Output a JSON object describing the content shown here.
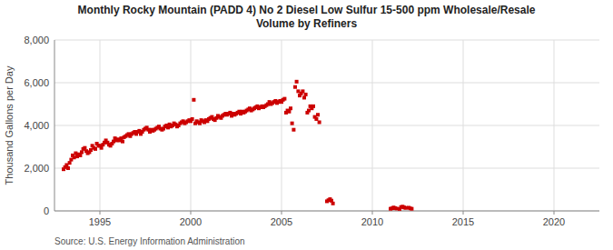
{
  "chart_data": {
    "type": "scatter",
    "title": "Monthly Rocky Mountain (PADD 4) No 2 Diesel Low Sulfur 15-500 ppm Wholesale/Resale\nVolume by Refiners",
    "ylabel": "Thousand Gallons per Day",
    "annotations": [
      "Source: U.S. Energy Information Administration"
    ],
    "color": "#cc0000",
    "marker": "square",
    "grid": true,
    "xlim": [
      1992.5,
      2022.5
    ],
    "xticks": [
      1995,
      2000,
      2005,
      2010,
      2015,
      2020
    ],
    "ylim": [
      0,
      8000
    ],
    "yticks": [
      0,
      {
        "value": 2000,
        "label": "2,000"
      },
      {
        "value": 4000,
        "label": "4,000"
      },
      {
        "value": 6000,
        "label": "6,000"
      },
      {
        "value": 8000,
        "label": "8,000"
      }
    ],
    "x": [
      1993.0,
      1993.08,
      1993.17,
      1993.25,
      1993.33,
      1993.42,
      1993.5,
      1993.58,
      1993.67,
      1993.75,
      1993.83,
      1993.92,
      1994.0,
      1994.08,
      1994.17,
      1994.25,
      1994.33,
      1994.42,
      1994.5,
      1994.58,
      1994.67,
      1994.75,
      1994.83,
      1994.92,
      1995.0,
      1995.08,
      1995.17,
      1995.25,
      1995.33,
      1995.42,
      1995.5,
      1995.58,
      1995.67,
      1995.75,
      1995.83,
      1995.92,
      1996.0,
      1996.08,
      1996.17,
      1996.25,
      1996.33,
      1996.42,
      1996.5,
      1996.58,
      1996.67,
      1996.75,
      1996.83,
      1996.92,
      1997.0,
      1997.08,
      1997.17,
      1997.25,
      1997.33,
      1997.42,
      1997.5,
      1997.58,
      1997.67,
      1997.75,
      1997.83,
      1997.92,
      1998.0,
      1998.08,
      1998.17,
      1998.25,
      1998.33,
      1998.42,
      1998.5,
      1998.58,
      1998.67,
      1998.75,
      1998.83,
      1998.92,
      1999.0,
      1999.08,
      1999.17,
      1999.25,
      1999.33,
      1999.42,
      1999.5,
      1999.58,
      1999.67,
      1999.75,
      1999.83,
      1999.92,
      2000.0,
      2000.08,
      2000.17,
      2000.25,
      2000.33,
      2000.42,
      2000.5,
      2000.58,
      2000.67,
      2000.75,
      2000.83,
      2000.92,
      2001.0,
      2001.08,
      2001.17,
      2001.25,
      2001.33,
      2001.42,
      2001.5,
      2001.58,
      2001.67,
      2001.75,
      2001.83,
      2001.92,
      2002.0,
      2002.08,
      2002.17,
      2002.25,
      2002.33,
      2002.42,
      2002.5,
      2002.58,
      2002.67,
      2002.75,
      2002.83,
      2002.92,
      2003.0,
      2003.08,
      2003.17,
      2003.25,
      2003.33,
      2003.42,
      2003.5,
      2003.58,
      2003.67,
      2003.75,
      2003.83,
      2003.92,
      2004.0,
      2004.08,
      2004.17,
      2004.25,
      2004.33,
      2004.42,
      2004.5,
      2004.58,
      2004.67,
      2004.75,
      2004.83,
      2004.92,
      2005.0,
      2005.08,
      2005.17,
      2005.25,
      2005.33,
      2005.42,
      2005.5,
      2005.58,
      2005.67,
      2005.75,
      2005.83,
      2005.92,
      2006.0,
      2006.08,
      2006.17,
      2006.25,
      2006.33,
      2006.42,
      2006.5,
      2006.58,
      2006.67,
      2006.75,
      2006.83,
      2006.92,
      2007.0,
      2007.08,
      2007.5,
      2007.58,
      2007.67,
      2007.75,
      2007.83,
      2011.0,
      2011.08,
      2011.17,
      2011.25,
      2011.33,
      2011.5,
      2011.58,
      2011.67,
      2011.75,
      2011.83,
      2012.0,
      2012.08,
      2012.17
    ],
    "values": [
      1950,
      2050,
      2150,
      2000,
      2250,
      2400,
      2600,
      2500,
      2700,
      2550,
      2650,
      2600,
      2750,
      2900,
      2950,
      2800,
      2700,
      2750,
      2850,
      3050,
      2950,
      2900,
      3150,
      3050,
      3050,
      2950,
      3100,
      3200,
      3300,
      3200,
      3100,
      3050,
      3150,
      3250,
      3400,
      3300,
      3350,
      3300,
      3400,
      3250,
      3450,
      3500,
      3550,
      3600,
      3500,
      3600,
      3650,
      3700,
      3600,
      3700,
      3750,
      3600,
      3700,
      3800,
      3850,
      3900,
      3800,
      3700,
      3800,
      3750,
      3800,
      3850,
      3900,
      3950,
      3850,
      3800,
      3850,
      3950,
      4000,
      3900,
      4050,
      3950,
      4000,
      4100,
      4050,
      3950,
      4000,
      4100,
      4150,
      4200,
      4100,
      4150,
      4200,
      4250,
      4200,
      4300,
      5200,
      4100,
      4200,
      4150,
      4100,
      4250,
      4200,
      4150,
      4250,
      4200,
      4300,
      4350,
      4400,
      4300,
      4250,
      4350,
      4450,
      4400,
      4350,
      4450,
      4500,
      4550,
      4500,
      4550,
      4600,
      4450,
      4550,
      4500,
      4550,
      4600,
      4650,
      4550,
      4650,
      4600,
      4650,
      4700,
      4750,
      4800,
      4700,
      4750,
      4800,
      4850,
      4900,
      4800,
      4850,
      4900,
      4850,
      4900,
      4950,
      5000,
      5100,
      5000,
      5050,
      5100,
      5150,
      5050,
      5100,
      5150,
      5100,
      5200,
      5250,
      4600,
      4700,
      4650,
      4800,
      4100,
      3800,
      5800,
      6050,
      5600,
      5400,
      5500,
      5600,
      5300,
      5450,
      4600,
      4700,
      4900,
      4800,
      4900,
      4400,
      4300,
      4500,
      4150,
      450,
      500,
      550,
      480,
      350,
      100,
      120,
      160,
      130,
      110,
      90,
      180,
      200,
      160,
      140,
      150,
      120,
      100
    ]
  }
}
